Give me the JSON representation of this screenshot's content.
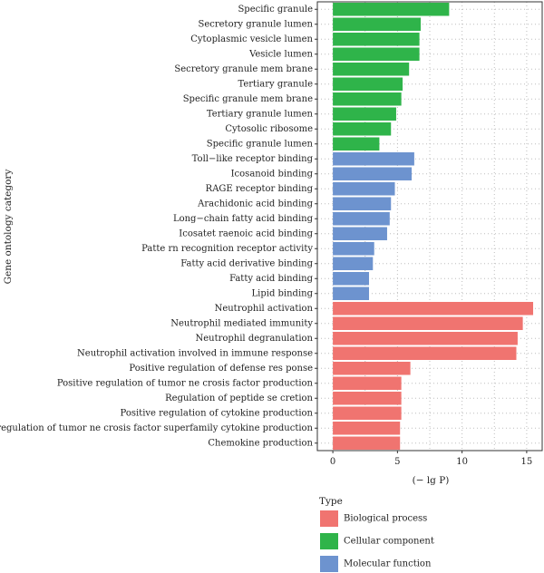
{
  "chart_data": {
    "type": "bar",
    "orientation": "horizontal",
    "xlabel": "(− lg P)",
    "ylabel": "Gene ontology category",
    "xlim": [
      -1.2,
      16.2
    ],
    "xticks": [
      0,
      5,
      10,
      15
    ],
    "grid": true,
    "legend_title": "Type",
    "legend_position": "bottom-left",
    "colors": {
      "Biological process": "#f07470",
      "Cellular component": "#2fb44a",
      "Molecular function": "#6d93cf"
    },
    "legend": [
      {
        "name": "Biological process",
        "color": "#f07470"
      },
      {
        "name": "Cellular component",
        "color": "#2fb44a"
      },
      {
        "name": "Molecular function",
        "color": "#6d93cf"
      }
    ],
    "categories": [
      {
        "label": "Specific granule",
        "value": 9.0,
        "type": "Cellular component"
      },
      {
        "label": "Secretory granule lumen",
        "value": 6.8,
        "type": "Cellular component"
      },
      {
        "label": "Cytoplasmic vesicle lumen",
        "value": 6.7,
        "type": "Cellular component"
      },
      {
        "label": "Vesicle lumen",
        "value": 6.7,
        "type": "Cellular component"
      },
      {
        "label": "Secretory granule mem brane",
        "value": 5.9,
        "type": "Cellular component"
      },
      {
        "label": "Tertiary granule",
        "value": 5.4,
        "type": "Cellular component"
      },
      {
        "label": "Specific granule mem brane",
        "value": 5.3,
        "type": "Cellular component"
      },
      {
        "label": "Tertiary granule lumen",
        "value": 4.9,
        "type": "Cellular component"
      },
      {
        "label": "Cytosolic ribosome",
        "value": 4.5,
        "type": "Cellular component"
      },
      {
        "label": "Specific granule lumen",
        "value": 3.6,
        "type": "Cellular component"
      },
      {
        "label": "Toll−like receptor binding",
        "value": 6.3,
        "type": "Molecular function"
      },
      {
        "label": "Icosanoid binding",
        "value": 6.1,
        "type": "Molecular function"
      },
      {
        "label": "RAGE receptor binding",
        "value": 4.8,
        "type": "Molecular function"
      },
      {
        "label": "Arachidonic acid binding",
        "value": 4.5,
        "type": "Molecular function"
      },
      {
        "label": "Long−chain fatty acid binding",
        "value": 4.4,
        "type": "Molecular function"
      },
      {
        "label": "Icosatet raenoic acid binding",
        "value": 4.2,
        "type": "Molecular function"
      },
      {
        "label": "Patte rn recognition receptor activity",
        "value": 3.2,
        "type": "Molecular function"
      },
      {
        "label": "Fatty acid derivative binding",
        "value": 3.1,
        "type": "Molecular function"
      },
      {
        "label": "Fatty acid binding",
        "value": 2.8,
        "type": "Molecular function"
      },
      {
        "label": "Lipid binding",
        "value": 2.8,
        "type": "Molecular function"
      },
      {
        "label": "Neutrophil activation",
        "value": 15.5,
        "type": "Biological process"
      },
      {
        "label": "Neutrophil mediated immunity",
        "value": 14.7,
        "type": "Biological process"
      },
      {
        "label": "Neutrophil degranulation",
        "value": 14.3,
        "type": "Biological process"
      },
      {
        "label": "Neutrophil activation involved in immune response",
        "value": 14.2,
        "type": "Biological process"
      },
      {
        "label": "Positive regulation of defense res ponse",
        "value": 6.0,
        "type": "Biological process"
      },
      {
        "label": "Positive regulation of tumor ne crosis factor production",
        "value": 5.3,
        "type": "Biological process"
      },
      {
        "label": "Regulation of peptide se cretion",
        "value": 5.3,
        "type": "Biological process"
      },
      {
        "label": "Positive regulation of cytokine production",
        "value": 5.3,
        "type": "Biological process"
      },
      {
        "label": "Positive regulation of tumor ne crosis factor superfamily cytokine production",
        "value": 5.2,
        "type": "Biological process"
      },
      {
        "label": "Chemokine production",
        "value": 5.2,
        "type": "Biological process"
      }
    ]
  }
}
